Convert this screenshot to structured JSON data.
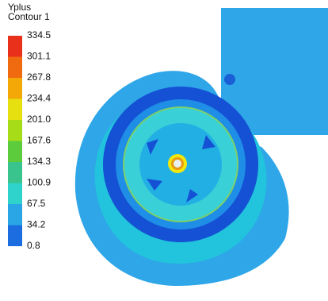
{
  "legend": {
    "title": "Yplus",
    "subtitle": "Contour 1",
    "labels": [
      "334.5",
      "301.1",
      "267.8",
      "234.4",
      "201.0",
      "167.6",
      "134.3",
      "100.9",
      "67.5",
      "34.2",
      "0.8"
    ]
  }
}
